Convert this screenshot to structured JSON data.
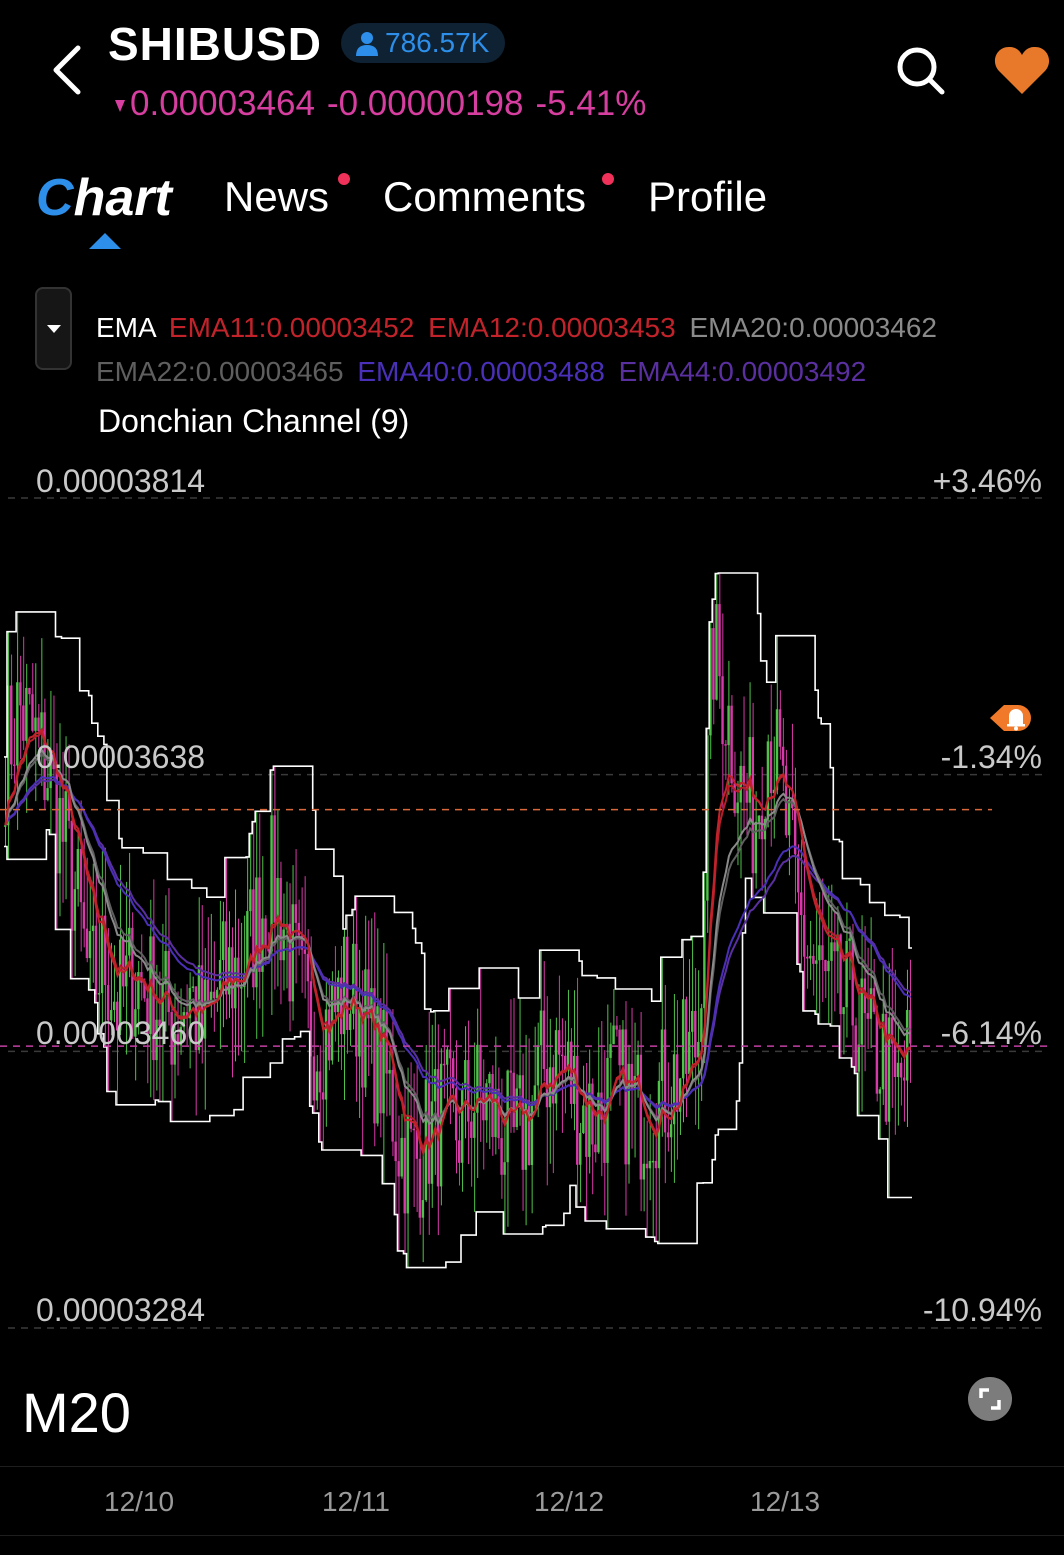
{
  "header": {
    "symbol": "SHIBUSD",
    "followers": "786.57K",
    "price": "0.00003464",
    "change": "-0.00000198",
    "change_pct": "-5.41%",
    "colors": {
      "down": "#d63ea0",
      "accent": "#2d8fe9",
      "favorite": "#e8792a"
    },
    "icons": [
      "back-arrow-icon",
      "person-icon",
      "search-icon",
      "heart-icon"
    ]
  },
  "tabs": [
    {
      "label": "Chart",
      "active": true,
      "badge": false
    },
    {
      "label": "News",
      "active": false,
      "badge": true
    },
    {
      "label": "Comments",
      "active": false,
      "badge": true
    },
    {
      "label": "Profile",
      "active": false,
      "badge": false
    }
  ],
  "tab_chart_first": "C",
  "tab_chart_rest": "hart",
  "indicators": {
    "ema_label": "EMA",
    "ema11": "EMA11:0.00003452",
    "ema12": "EMA12:0.00003453",
    "ema20": "EMA20:0.00003462",
    "ema22": "EMA22:0.00003465",
    "ema40": "EMA40:0.00003488",
    "ema44": "EMA44:0.00003492",
    "donchian": "Donchian Channel (9)",
    "colors": {
      "ema11": "#c2232b",
      "ema12": "#c2232b",
      "ema20": "#8a8a8a",
      "ema22": "#5f5f5f",
      "ema40": "#4a2fb8",
      "ema44": "#5a2fa0"
    }
  },
  "axis": {
    "left": [
      "0.00003814",
      "0.00003638",
      "0.00003460",
      "0.00003284"
    ],
    "right": [
      "+3.46%",
      "-1.34%",
      "-6.14%",
      "-10.94%"
    ],
    "x": [
      "12/10",
      "12/11",
      "12/12",
      "12/13"
    ]
  },
  "period": "M20",
  "chart_data": {
    "type": "candlestick",
    "ylim": [
      3.284e-05,
      3.814e-05
    ],
    "last_price": 3.464e-05,
    "alert_price": 3.615e-05,
    "x_ticks": [
      "12/10",
      "12/11",
      "12/12",
      "12/13"
    ],
    "price_path": [
      3.65e-05,
      3.68e-05,
      3.66e-05,
      3.64e-05,
      3.6e-05,
      3.56e-05,
      3.5e-05,
      3.52e-05,
      3.49e-05,
      3.51e-05,
      3.5e-05,
      3.49e-05,
      3.48e-05,
      3.5e-05,
      3.47e-05,
      3.5e-05,
      3.51e-05,
      3.52e-05,
      3.55e-05,
      3.57e-05,
      3.53e-05,
      3.49e-05,
      3.47e-05,
      3.48e-05,
      3.5e-05,
      3.49e-05,
      3.46e-05,
      3.44e-05,
      3.4e-05,
      3.39e-05,
      3.41e-05,
      3.42e-05,
      3.41e-05,
      3.43e-05,
      3.43e-05,
      3.41e-05,
      3.4e-05,
      3.42e-05,
      3.45e-05,
      3.46e-05,
      3.44e-05,
      3.42e-05,
      3.42e-05,
      3.44e-05,
      3.43e-05,
      3.42e-05,
      3.43e-05,
      3.44e-05,
      3.45e-05,
      3.47e-05,
      3.72e-05,
      3.68e-05,
      3.63e-05,
      3.61e-05,
      3.67e-05,
      3.62e-05,
      3.55e-05,
      3.52e-05,
      3.5e-05,
      3.49e-05,
      3.49e-05,
      3.46e-05,
      3.46e-05,
      3.43e-05,
      3.46e-05
    ]
  }
}
